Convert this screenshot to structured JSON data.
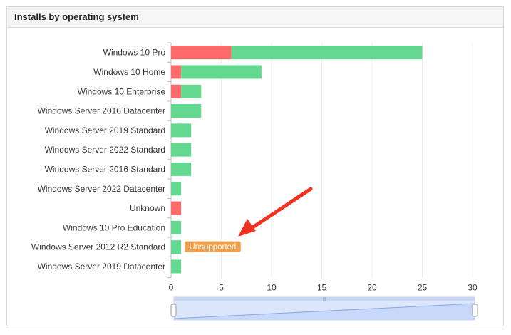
{
  "panel": {
    "title": "Installs by operating system"
  },
  "chart_data": {
    "type": "bar",
    "orientation": "horizontal",
    "stacked": true,
    "categories": [
      "Windows 10 Pro",
      "Windows 10 Home",
      "Windows 10 Enterprise",
      "Windows Server 2016 Datacenter",
      "Windows Server 2019 Standard",
      "Windows Server 2022 Standard",
      "Windows Server 2016 Standard",
      "Windows Server 2022 Datacenter",
      "Unknown",
      "Windows 10 Pro Education",
      "Windows Server 2012 R2 Standard",
      "Windows Server 2019 Datacenter"
    ],
    "series": [
      {
        "color": "#ff6b6b",
        "values": [
          6,
          1,
          1,
          0,
          0,
          0,
          0,
          0,
          1,
          0,
          0,
          0
        ]
      },
      {
        "color": "#62d98f",
        "values": [
          19,
          8,
          2,
          3,
          2,
          2,
          2,
          1,
          0,
          1,
          1,
          1
        ]
      }
    ],
    "xlim": [
      0,
      30
    ],
    "xticks": [
      0,
      5,
      10,
      15,
      20,
      25,
      30
    ],
    "grid": true,
    "annotations": [
      {
        "category": "Windows Server 2012 R2 Standard",
        "text": "Unsupported",
        "color": "#f0a04b"
      }
    ]
  }
}
